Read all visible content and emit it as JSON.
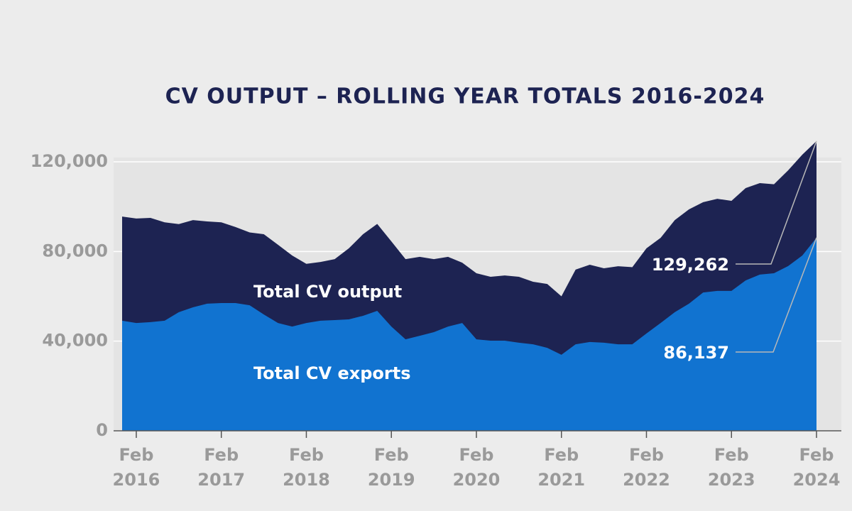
{
  "chart_data": {
    "type": "area",
    "title": "CV OUTPUT – ROLLING YEAR TOTALS 2016-2024",
    "categories": [
      null,
      "Feb 2016",
      null,
      null,
      null,
      null,
      null,
      "Feb 2017",
      null,
      null,
      null,
      null,
      null,
      "Feb 2018",
      null,
      null,
      null,
      null,
      null,
      "Feb 2019",
      null,
      null,
      null,
      null,
      null,
      "Feb 2020",
      null,
      null,
      null,
      null,
      null,
      "Feb 2021",
      null,
      null,
      null,
      null,
      null,
      "Feb 2022",
      null,
      null,
      null,
      null,
      null,
      "Feb 2023",
      null,
      null,
      null,
      null,
      null,
      "Feb 2024"
    ],
    "series": [
      {
        "name": "Total CV output",
        "color": "#1d2352",
        "values": [
          95600,
          94700,
          95000,
          93000,
          92200,
          94000,
          93400,
          93000,
          90900,
          88500,
          87700,
          83000,
          78200,
          74500,
          75300,
          76600,
          81400,
          87700,
          92300,
          84500,
          76600,
          77600,
          76600,
          77600,
          75000,
          70300,
          68700,
          69300,
          68700,
          66500,
          65500,
          60000,
          71900,
          74100,
          72500,
          73400,
          73000,
          81400,
          86100,
          94000,
          98800,
          102000,
          103500,
          102600,
          108300,
          110500,
          110000,
          116200,
          123200,
          129262
        ],
        "value_labels": [
          null,
          null,
          null,
          null,
          null,
          null,
          null,
          null,
          null,
          null,
          null,
          null,
          null,
          null,
          null,
          null,
          null,
          null,
          null,
          null,
          null,
          null,
          null,
          null,
          null,
          null,
          null,
          null,
          null,
          null,
          null,
          null,
          null,
          null,
          null,
          null,
          null,
          null,
          null,
          null,
          null,
          null,
          null,
          null,
          null,
          null,
          null,
          null,
          null,
          "129,262"
        ]
      },
      {
        "name": "Total CV exports",
        "color": "#1173d0",
        "values": [
          49100,
          48100,
          48500,
          49100,
          52900,
          55100,
          56700,
          57000,
          57000,
          56000,
          51900,
          48100,
          46500,
          48100,
          49100,
          49400,
          49700,
          51300,
          53500,
          46500,
          40800,
          42400,
          44000,
          46500,
          48100,
          40800,
          40200,
          40200,
          39300,
          38600,
          37000,
          33900,
          38600,
          39600,
          39300,
          38600,
          38600,
          43400,
          48100,
          52900,
          56700,
          61700,
          62400,
          62400,
          67100,
          69700,
          70300,
          73500,
          78200,
          86137
        ],
        "value_labels": [
          null,
          null,
          null,
          null,
          null,
          null,
          null,
          null,
          null,
          null,
          null,
          null,
          null,
          null,
          null,
          null,
          null,
          null,
          null,
          null,
          null,
          null,
          null,
          null,
          null,
          null,
          null,
          null,
          null,
          null,
          null,
          null,
          null,
          null,
          null,
          null,
          null,
          null,
          null,
          null,
          null,
          null,
          null,
          null,
          null,
          null,
          null,
          null,
          null,
          "86,137"
        ]
      }
    ],
    "ylim": [
      0,
      120000
    ],
    "yticks": [
      0,
      {
        "value": 40000,
        "label": "40,000"
      },
      {
        "value": 80000,
        "label": "80,000"
      },
      {
        "value": 120000,
        "label": "120,000"
      }
    ],
    "grid": true
  }
}
